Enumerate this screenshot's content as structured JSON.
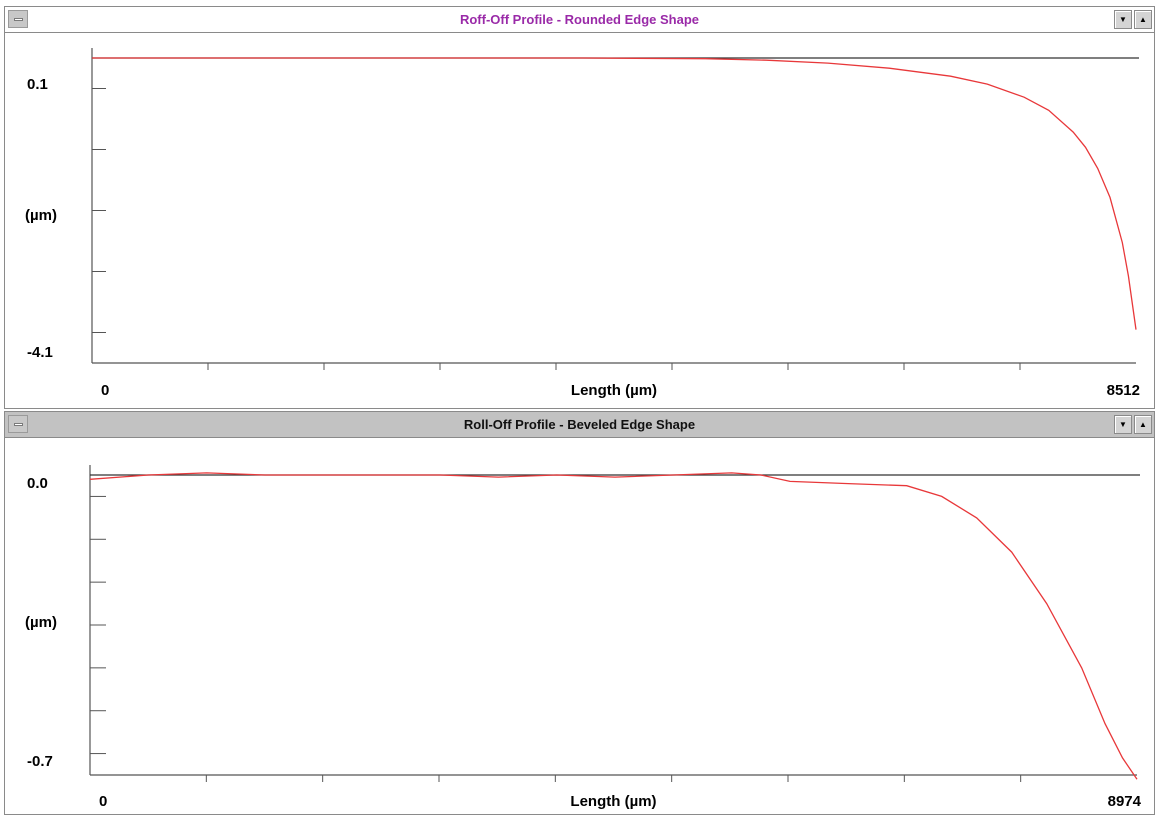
{
  "windows": [
    {
      "title": "Roff-Off Profile - Rounded Edge Shape",
      "state": "active",
      "title_color": "#9a2aa8"
    },
    {
      "title": "Roll-Off Profile - Beveled Edge Shape",
      "state": "inactive",
      "title_color": "#111111"
    }
  ],
  "icons": {
    "system_menu": "system-menu-icon",
    "minimize": "minimize-arrow-icon",
    "maximize": "maximize-arrow-icon",
    "minimize_glyph": "▼",
    "maximize_glyph": "▲"
  },
  "colors": {
    "profile_line": "#e8383a",
    "reference_line": "#333333"
  },
  "chart_data": [
    {
      "type": "line",
      "title": "Roff-Off Profile - Rounded Edge Shape",
      "xlabel": "Length (µm)",
      "ylabel": "(µm)",
      "xlim": [
        0,
        8512
      ],
      "ylim": [
        -4.1,
        0.1
      ],
      "x_tick_labels": [
        "0",
        "8512"
      ],
      "y_tick_labels": [
        "0.1",
        "-4.1"
      ],
      "x_minor_ticks": 9,
      "y_minor_ticks": 5,
      "reference_y": 0.1,
      "series": [
        {
          "x": [
            0,
            1000,
            2000,
            3000,
            4000,
            5000,
            5500,
            6000,
            6500,
            7000,
            7300,
            7600,
            7800,
            8000,
            8100,
            8200,
            8300,
            8400,
            8450,
            8512
          ],
          "y": [
            0.1,
            0.1,
            0.1,
            0.1,
            0.1,
            0.09,
            0.07,
            0.03,
            -0.04,
            -0.15,
            -0.26,
            -0.44,
            -0.62,
            -0.92,
            -1.13,
            -1.42,
            -1.82,
            -2.44,
            -2.9,
            -3.64
          ]
        }
      ]
    },
    {
      "type": "line",
      "title": "Roll-Off Profile - Beveled Edge Shape",
      "xlabel": "Length (µm)",
      "ylabel": "(µm)",
      "xlim": [
        0,
        8974
      ],
      "ylim": [
        -0.7,
        0.0
      ],
      "x_tick_labels": [
        "0",
        "8974"
      ],
      "y_tick_labels": [
        "0.0",
        "-0.7"
      ],
      "x_minor_ticks": 9,
      "y_minor_ticks": 7,
      "reference_y": 0.0,
      "series": [
        {
          "x": [
            0,
            500,
            1000,
            1500,
            2000,
            2500,
            3000,
            3500,
            4000,
            4500,
            5000,
            5500,
            5750,
            6000,
            6500,
            7000,
            7300,
            7600,
            7900,
            8200,
            8500,
            8700,
            8850,
            8974
          ],
          "y": [
            -0.01,
            0.0,
            0.005,
            0.0,
            0.0,
            0.0,
            0.0,
            -0.005,
            0.0,
            -0.005,
            0.0,
            0.005,
            0.0,
            -0.015,
            -0.02,
            -0.025,
            -0.05,
            -0.1,
            -0.18,
            -0.3,
            -0.45,
            -0.58,
            -0.66,
            -0.71
          ]
        }
      ]
    }
  ]
}
